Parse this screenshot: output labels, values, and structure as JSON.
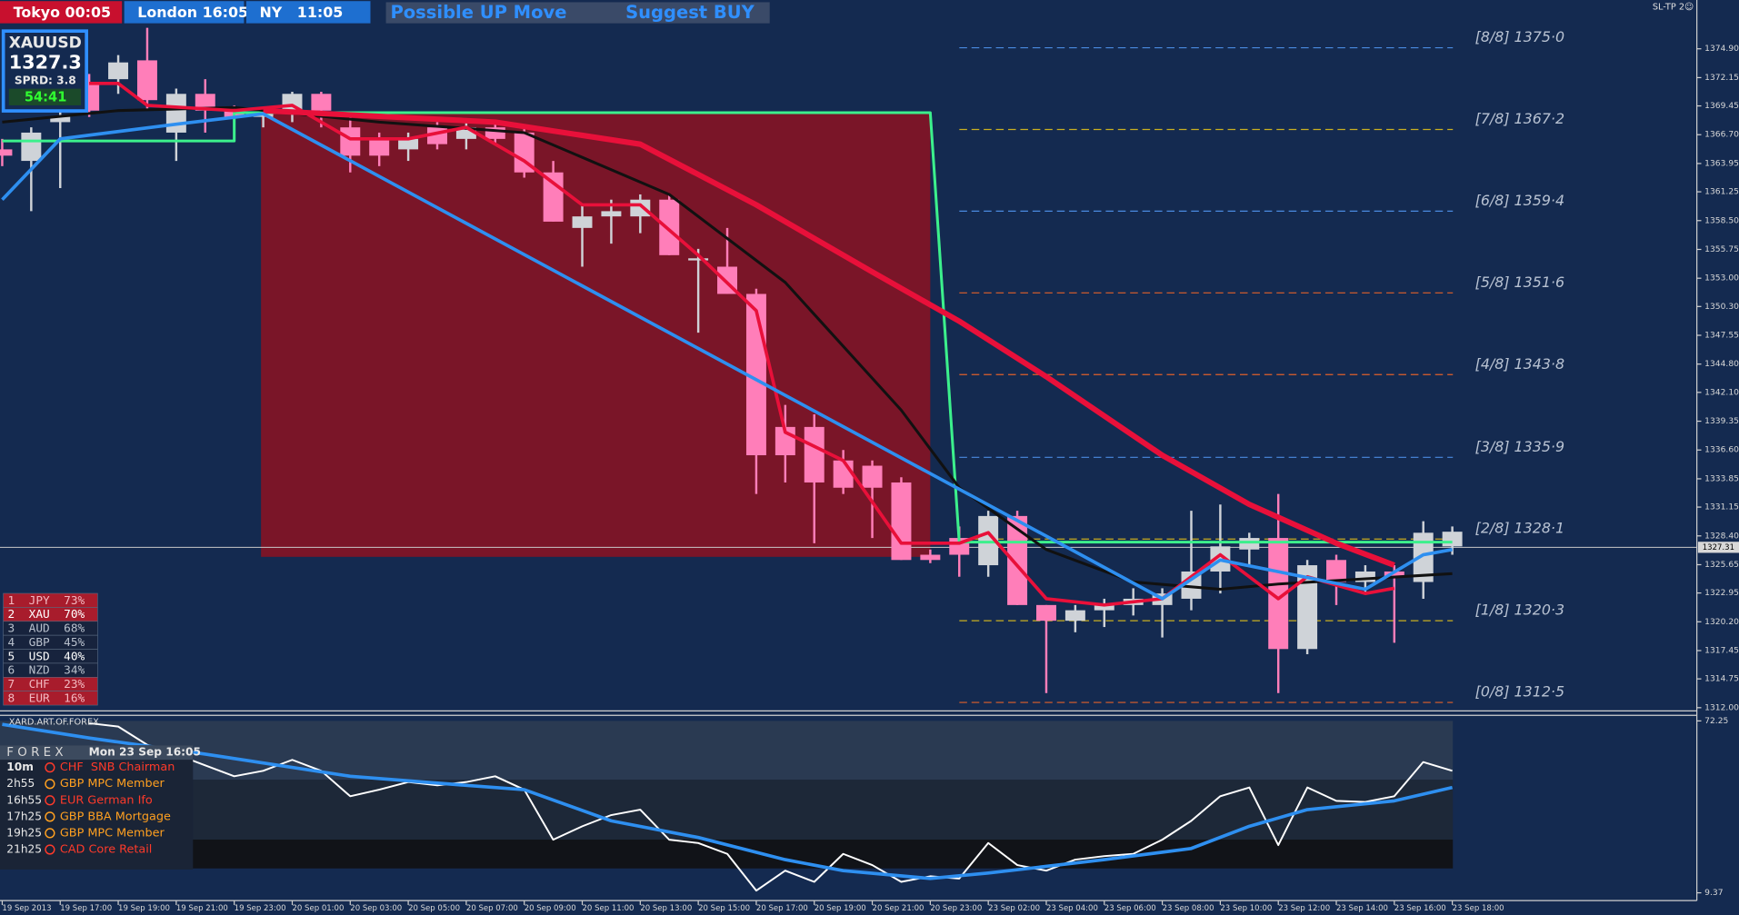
{
  "header": {
    "sessions": [
      {
        "text": "Tokyo 00:05",
        "color": "#c8102e"
      },
      {
        "text": "London 16:05",
        "color": "#1e6fd0"
      },
      {
        "text": "NY   11:05",
        "color": "#1e6fd0"
      }
    ],
    "signal": "Possible UP Move",
    "suggest": "Suggest  BUY",
    "corner": "SL-TP 2☺"
  },
  "symbol_box": {
    "symbol": "XAUUSD",
    "price": "1327.3",
    "spread": "SPRD: 3.8",
    "timer": "54:41"
  },
  "chart": {
    "ylim": [
      1311.69,
      1379.56
    ],
    "yticks": [
      {
        "value": 1374.9,
        "label": "1374.90"
      },
      {
        "value": 1372.15,
        "label": "1372.15"
      },
      {
        "value": 1369.45,
        "label": "1369.45"
      },
      {
        "value": 1366.7,
        "label": "1366.70"
      },
      {
        "value": 1363.95,
        "label": "1363.95"
      },
      {
        "value": 1361.25,
        "label": "1361.25"
      },
      {
        "value": 1358.5,
        "label": "1358.50"
      },
      {
        "value": 1355.75,
        "label": "1355.75"
      },
      {
        "value": 1353,
        "label": "1353.00"
      },
      {
        "value": 1350.3,
        "label": "1350.30"
      },
      {
        "value": 1347.55,
        "label": "1347.55"
      },
      {
        "value": 1344.8,
        "label": "1344.80"
      },
      {
        "value": 1342.1,
        "label": "1342.10"
      },
      {
        "value": 1339.35,
        "label": "1339.35"
      },
      {
        "value": 1336.6,
        "label": "1336.60"
      },
      {
        "value": 1333.85,
        "label": "1333.85"
      },
      {
        "value": 1331.15,
        "label": "1331.15"
      },
      {
        "value": 1328.4,
        "label": "1328.40"
      },
      {
        "value": 1325.65,
        "label": "1325.65"
      },
      {
        "value": 1322.95,
        "label": "1322.95"
      },
      {
        "value": 1320.2,
        "label": "1320.20"
      },
      {
        "value": 1317.45,
        "label": "1317.45"
      },
      {
        "value": 1314.75,
        "label": "1314.75"
      },
      {
        "value": 1312,
        "label": "1312.00"
      }
    ],
    "current_price": 1327.31,
    "candle_colors": {
      "up": "#cfd3d8",
      "down": "#ff7eb9"
    },
    "candles": [
      [
        1365.3,
        1366.3,
        1363.7,
        1364.7
      ],
      [
        1364.2,
        1367.4,
        1359.4,
        1366.9
      ],
      [
        1367.9,
        1369.5,
        1361.6,
        1368.4
      ],
      [
        1371.6,
        1372.5,
        1368.4,
        1369.0
      ],
      [
        1372.0,
        1374.3,
        1370.6,
        1373.6
      ],
      [
        1373.8,
        1376.9,
        1369.0,
        1370.0
      ],
      [
        1366.9,
        1371.1,
        1364.2,
        1370.6
      ],
      [
        1370.6,
        1372.0,
        1366.9,
        1369.0
      ],
      [
        1369.0,
        1369.5,
        1367.4,
        1368.4
      ],
      [
        1368.4,
        1369.0,
        1367.4,
        1368.9
      ],
      [
        1369.0,
        1370.8,
        1367.9,
        1370.6
      ],
      [
        1370.6,
        1370.8,
        1367.4,
        1369.0
      ],
      [
        1367.4,
        1368.4,
        1363.1,
        1364.7
      ],
      [
        1366.3,
        1366.9,
        1363.7,
        1364.7
      ],
      [
        1365.3,
        1366.9,
        1364.2,
        1366.3
      ],
      [
        1367.4,
        1367.9,
        1365.3,
        1365.8
      ],
      [
        1366.3,
        1367.9,
        1365.3,
        1367.4
      ],
      [
        1367.4,
        1367.9,
        1365.8,
        1366.3
      ],
      [
        1366.9,
        1367.4,
        1362.6,
        1363.1
      ],
      [
        1363.1,
        1364.2,
        1358.4,
        1358.4
      ],
      [
        1357.8,
        1360.0,
        1354.1,
        1358.9
      ],
      [
        1358.9,
        1360.5,
        1356.3,
        1359.4
      ],
      [
        1358.9,
        1361.0,
        1357.3,
        1360.5
      ],
      [
        1360.5,
        1361.0,
        1355.2,
        1355.2
      ],
      [
        1354.7,
        1355.8,
        1347.8,
        1354.9
      ],
      [
        1354.1,
        1357.8,
        1351.5,
        1351.5
      ],
      [
        1351.5,
        1352.0,
        1332.4,
        1336.1
      ],
      [
        1338.8,
        1340.9,
        1333.5,
        1336.1
      ],
      [
        1338.8,
        1340.0,
        1327.7,
        1333.5
      ],
      [
        1335.6,
        1336.6,
        1332.4,
        1333.0
      ],
      [
        1335.1,
        1335.6,
        1328.2,
        1333.0
      ],
      [
        1333.5,
        1334.0,
        1326.1,
        1326.1
      ],
      [
        1326.6,
        1327.1,
        1325.8,
        1326.1
      ],
      [
        1328.2,
        1329.3,
        1324.5,
        1326.6
      ],
      [
        1325.6,
        1330.8,
        1324.5,
        1330.3
      ],
      [
        1330.3,
        1330.8,
        1321.8,
        1321.8
      ],
      [
        1321.8,
        1321.8,
        1313.4,
        1320.3
      ],
      [
        1320.3,
        1321.8,
        1319.2,
        1321.3
      ],
      [
        1321.3,
        1322.4,
        1319.7,
        1321.8
      ],
      [
        1321.8,
        1323.4,
        1320.8,
        1322.4
      ],
      [
        1321.8,
        1323.4,
        1318.7,
        1322.9
      ],
      [
        1322.4,
        1330.8,
        1321.3,
        1325.0
      ],
      [
        1325.0,
        1331.4,
        1322.9,
        1327.4
      ],
      [
        1327.1,
        1328.7,
        1325.6,
        1328.2
      ],
      [
        1328.2,
        1332.4,
        1313.4,
        1317.6
      ],
      [
        1317.6,
        1326.1,
        1317.1,
        1325.6
      ],
      [
        1326.1,
        1326.6,
        1321.8,
        1324.0
      ],
      [
        1324.0,
        1325.6,
        1322.9,
        1325.0
      ],
      [
        1325.0,
        1325.6,
        1318.2,
        1324.5
      ],
      [
        1324.0,
        1329.8,
        1322.4,
        1328.7
      ],
      [
        1327.4,
        1329.3,
        1326.6,
        1328.8
      ]
    ],
    "zone": {
      "color": "#7a1528",
      "x": [
        9,
        32
      ],
      "values": [
        1368.8,
        1326.4
      ]
    },
    "levels": [
      {
        "label": "[8/8] 1375·0",
        "value": 1375.0,
        "color": "#4a8ae0"
      },
      {
        "label": "[7/8] 1367·2",
        "value": 1367.2,
        "color": "#c9b020"
      },
      {
        "label": "[6/8] 1359·4",
        "value": 1359.4,
        "color": "#4a8ae0"
      },
      {
        "label": "[5/8] 1351·6",
        "value": 1351.6,
        "color": "#e0602a"
      },
      {
        "label": "[4/8] 1343·8",
        "value": 1343.8,
        "color": "#e0602a"
      },
      {
        "label": "[3/8] 1335·9",
        "value": 1335.9,
        "color": "#4a8ae0"
      },
      {
        "label": "[2/8] 1328·1",
        "value": 1328.1,
        "color": "#c9b020"
      },
      {
        "label": "[1/8] 1320·3",
        "value": 1320.3,
        "color": "#c9b020"
      },
      {
        "label": "[0/8] 1312·5",
        "value": 1312.5,
        "color": "#e0602a"
      }
    ],
    "lines": [
      {
        "color": "#3cf08c",
        "width": 2.5,
        "x": [
          0,
          8,
          8,
          32,
          33,
          50
        ],
        "values": [
          1366.1,
          1366.1,
          1368.8,
          1368.8,
          1327.8,
          1327.8
        ]
      },
      {
        "color": "#111111",
        "width": 2.5,
        "x": [
          0,
          4,
          8,
          13,
          18,
          23,
          27,
          31,
          33,
          36,
          39,
          42,
          44,
          47,
          50
        ],
        "values": [
          1367.9,
          1369.0,
          1369.3,
          1367.9,
          1366.9,
          1361.0,
          1352.6,
          1340.4,
          1333.0,
          1327.1,
          1324.0,
          1323.3,
          1323.8,
          1324.3,
          1324.8
        ]
      },
      {
        "color": "#e8103a",
        "width": 5,
        "x": [
          9,
          17,
          22,
          26,
          30,
          33,
          36,
          40,
          43,
          46,
          48
        ],
        "values": [
          1369.0,
          1367.9,
          1365.8,
          1360.0,
          1353.6,
          1348.9,
          1343.6,
          1336.1,
          1331.4,
          1327.7,
          1325.6
        ]
      },
      {
        "color": "#e8103a",
        "width": 3,
        "x": [
          3,
          4,
          5,
          8,
          10,
          12,
          14,
          16,
          18,
          20,
          22,
          24,
          26,
          27,
          29,
          31,
          33,
          34,
          36,
          38,
          40,
          42,
          44,
          45,
          47,
          48
        ],
        "values": [
          1371.6,
          1371.6,
          1369.5,
          1369.0,
          1369.5,
          1366.3,
          1366.3,
          1367.4,
          1364.2,
          1360.0,
          1360.0,
          1355.2,
          1349.9,
          1338.3,
          1335.6,
          1327.7,
          1327.7,
          1328.7,
          1322.4,
          1321.8,
          1322.4,
          1326.6,
          1322.4,
          1324.5,
          1322.9,
          1323.4
        ]
      },
      {
        "color": "#2e8ff0",
        "width": 3,
        "x": [
          0,
          2,
          6,
          9,
          40,
          42,
          47,
          49,
          50
        ],
        "values": [
          1360.5,
          1366.3,
          1367.7,
          1368.7,
          1322.4,
          1326.1,
          1323.3,
          1326.6,
          1327.1
        ]
      }
    ],
    "time_labels": [
      "19 Sep 2013",
      "19 Sep 17:00",
      "19 Sep 19:00",
      "19 Sep 21:00",
      "19 Sep 23:00",
      "20 Sep 01:00",
      "20 Sep 03:00",
      "20 Sep 05:00",
      "20 Sep 07:00",
      "20 Sep 09:00",
      "20 Sep 11:00",
      "20 Sep 13:00",
      "20 Sep 15:00",
      "20 Sep 17:00",
      "20 Sep 19:00",
      "20 Sep 21:00",
      "20 Sep 23:00",
      "23 Sep 02:00",
      "23 Sep 04:00",
      "23 Sep 06:00",
      "23 Sep 08:00",
      "23 Sep 10:00",
      "23 Sep 12:00",
      "23 Sep 14:00",
      "23 Sep 16:00",
      "23 Sep 18:00"
    ]
  },
  "strength": {
    "rows": [
      {
        "text": "1  JPY  73%",
        "bg": "#a81c2c",
        "fg": "#f2b8c0"
      },
      {
        "text": "2  XAU  70%",
        "bg": "#a81c2c",
        "fg": "#ffffff"
      },
      {
        "text": "3  AUD  68%",
        "bg": "#17233d",
        "fg": "#b8c0cc"
      },
      {
        "text": "4  GBP  45%",
        "bg": "#17233d",
        "fg": "#b8c0cc"
      },
      {
        "text": "5  USD  40%",
        "bg": "#17233d",
        "fg": "#ffffff"
      },
      {
        "text": "6  NZD  34%",
        "bg": "#17233d",
        "fg": "#b8c0cc"
      },
      {
        "text": "7  CHF  23%",
        "bg": "#a81c2c",
        "fg": "#f2b8c0"
      },
      {
        "text": "8  EUR  16%",
        "bg": "#a81c2c",
        "fg": "#f2b8c0"
      }
    ]
  },
  "indicator": {
    "title": "XARD.ART.OF.FOREX",
    "ylim": [
      9.37,
      72.25
    ],
    "yticks": [
      9.37,
      72.25
    ],
    "lines": [
      {
        "color": "#ffffff",
        "width": 1.6,
        "x": [
          3,
          4,
          5,
          6,
          7,
          8,
          9,
          10,
          11,
          12,
          13,
          14,
          15,
          16,
          17,
          18,
          19,
          20,
          21,
          22,
          23,
          24,
          25,
          26,
          27,
          28,
          29,
          30,
          31,
          32,
          33,
          34,
          35,
          36,
          37,
          38,
          39,
          40,
          41,
          42,
          43,
          44,
          45,
          46,
          47,
          48,
          49,
          50
        ],
        "values": [
          71.4,
          70.2,
          63.5,
          60.0,
          56.0,
          52.0,
          54.0,
          58.0,
          54.0,
          44.7,
          47.1,
          49.9,
          48.7,
          49.9,
          52.0,
          47.1,
          28.8,
          33.7,
          37.8,
          39.8,
          28.8,
          27.6,
          23.6,
          10.2,
          17.5,
          13.4,
          23.6,
          19.5,
          13.4,
          15.4,
          14.6,
          27.6,
          19.5,
          17.5,
          21.5,
          22.8,
          23.6,
          28.8,
          35.7,
          44.7,
          47.9,
          26.8,
          47.9,
          43.0,
          42.6,
          44.7,
          57.2,
          54.0
        ]
      },
      {
        "color": "#2e8ff0",
        "width": 3,
        "x": [
          0,
          3,
          7,
          12,
          16,
          18,
          21,
          24,
          27,
          29,
          32,
          34,
          38,
          41,
          43,
          45,
          48,
          50
        ],
        "values": [
          71.0,
          66.0,
          60.1,
          52.0,
          48.7,
          47.1,
          35.7,
          29.6,
          21.5,
          17.5,
          14.6,
          16.6,
          21.5,
          25.6,
          33.7,
          39.8,
          43.0,
          47.9
        ]
      }
    ]
  },
  "news": {
    "title": "F O R E X",
    "date": "Mon 23 Sep 16:05",
    "rows": [
      {
        "time": "10m",
        "event": "CHF  SNB Chairman",
        "color": "#ff3a2a"
      },
      {
        "time": "2h55",
        "event": "GBP MPC Member",
        "color": "#ffa020"
      },
      {
        "time": "16h55",
        "event": "EUR German Ifo",
        "color": "#ff3a2a"
      },
      {
        "time": "17h25",
        "event": "GBP BBA Mortgage",
        "color": "#ffa020"
      },
      {
        "time": "19h25",
        "event": "GBP MPC Member",
        "color": "#ffa020"
      },
      {
        "time": "21h25",
        "event": "CAD Core Retail",
        "color": "#ff3a2a"
      }
    ]
  }
}
